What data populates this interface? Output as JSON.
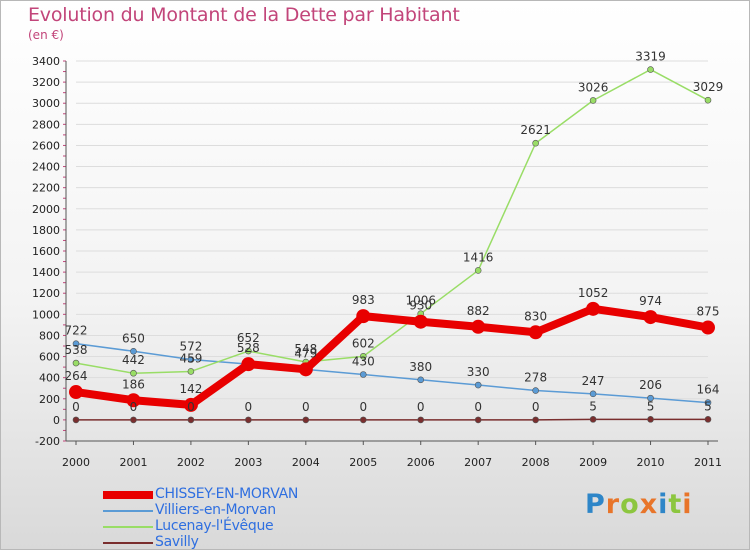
{
  "header": {
    "title": "Evolution du Montant de la Dette par Habitant",
    "unit": "(en €)"
  },
  "colors": {
    "title": "#c2457a",
    "legend_text": "#2f6fe0",
    "grid": "#dddddd",
    "axis": "#555555"
  },
  "logo": {
    "text": "Proxiti",
    "letters": [
      "P",
      "r",
      "o",
      "x",
      "i",
      "t",
      "i"
    ],
    "letter_colors": [
      "#2e86c8",
      "#e8752a",
      "#8cc63f",
      "#e8752a",
      "#2e86c8",
      "#8cc63f",
      "#e8752a"
    ]
  },
  "chart_data": {
    "type": "line",
    "title": "Evolution du Montant de la Dette par Habitant",
    "ylabel": "(en €)",
    "xlabel": "",
    "categories": [
      "2000",
      "2001",
      "2002",
      "2003",
      "2004",
      "2005",
      "2006",
      "2007",
      "2008",
      "2009",
      "2010",
      "2011"
    ],
    "ylim": [
      -200,
      3400
    ],
    "ytick_step": 200,
    "ytick_labels": [
      "-200",
      "0",
      "200",
      "400",
      "600",
      "800",
      "1000",
      "1200",
      "1400",
      "1600",
      "1800",
      "2000",
      "2200",
      "2400",
      "2600",
      "2800",
      "3000",
      "3200",
      "3400"
    ],
    "grid": true,
    "legend_position": "bottom-left",
    "series": [
      {
        "name": "CHISSEY-EN-MORVAN",
        "color": "#e80000",
        "values": [
          264,
          186,
          142,
          528,
          479,
          983,
          930,
          882,
          830,
          1052,
          974,
          875
        ],
        "labels": [
          "264",
          "186",
          "142",
          "528",
          "479",
          "983",
          "930",
          "882",
          "830",
          "1052",
          "974",
          "875"
        ]
      },
      {
        "name": "Villiers-en-Morvan",
        "color": "#5b9bd5",
        "values": [
          722,
          650,
          572,
          528,
          479,
          430,
          380,
          330,
          278,
          247,
          206,
          164
        ],
        "labels": [
          "722",
          "650",
          "572",
          "",
          "",
          "430",
          "380",
          "330",
          "278",
          "247",
          "206",
          "164"
        ]
      },
      {
        "name": "Lucenay-l'Évêque",
        "color": "#99dd66",
        "values": [
          538,
          442,
          459,
          652,
          548,
          602,
          1006,
          1416,
          2621,
          3026,
          3319,
          3029
        ],
        "labels": [
          "538",
          "442",
          "459",
          "652",
          "548",
          "602",
          "1006",
          "1416",
          "2621",
          "3026",
          "3319",
          "3029"
        ]
      },
      {
        "name": "Savilly",
        "color": "#7a2e2e",
        "values": [
          0,
          0,
          0,
          0,
          0,
          0,
          0,
          0,
          0,
          5,
          5,
          5
        ],
        "labels": [
          "0",
          "0",
          "0",
          "0",
          "0",
          "0",
          "0",
          "0",
          "0",
          "5",
          "5",
          "5"
        ]
      }
    ]
  }
}
